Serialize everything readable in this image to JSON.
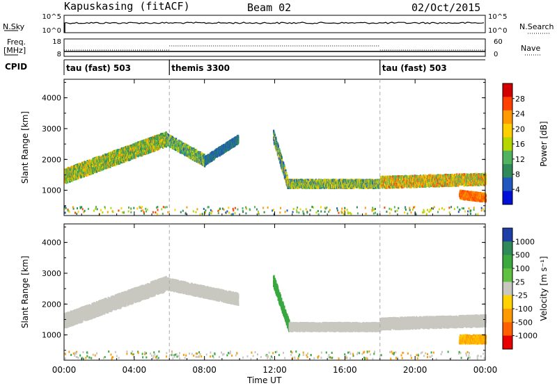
{
  "header": {
    "station": "Kapuskasing (fitACF)",
    "beam": "Beam 02",
    "date": "02/Oct/2015"
  },
  "top_panels": {
    "nsky_label": "N.Sky",
    "nsky_ticks": [
      "10^5",
      "10^0"
    ],
    "nsearch_label": "N.Search",
    "nsearch_ticks": [
      "10^5",
      "10^0"
    ],
    "freq_label_line1": "Freq.",
    "freq_label_line2": "[MHz]",
    "freq_ticks": [
      "18",
      "8"
    ],
    "nave_label": "Nave",
    "nave_ticks": [
      "60",
      "0"
    ],
    "cpid_label": "CPID",
    "cpid_segments": [
      {
        "label": "tau (fast) 503",
        "start_hour": 0,
        "end_hour": 6
      },
      {
        "label": "themis 3300",
        "start_hour": 6,
        "end_hour": 18
      },
      {
        "label": "tau (fast) 503",
        "start_hour": 18,
        "end_hour": 24
      }
    ]
  },
  "x_axis": {
    "label": "Time UT",
    "ticks": [
      "00:00",
      "04:00",
      "08:00",
      "12:00",
      "16:00",
      "20:00",
      "00:00"
    ]
  },
  "chart_data": [
    {
      "type": "heatmap",
      "name": "power",
      "ylabel": "Slant Range [km]",
      "yticks": [
        "4000",
        "3000",
        "2000",
        "1000"
      ],
      "ylim": [
        180,
        4600
      ],
      "xlim_hours": [
        0,
        24
      ],
      "colorbar_label": "Power [dB]",
      "colorbar_ticks": [
        "28",
        "24",
        "20",
        "16",
        "12",
        "8",
        "4"
      ],
      "colorbar_colors": [
        "#d40000",
        "#ff4000",
        "#ff9a00",
        "#ffd000",
        "#b6d600",
        "#4fb35f",
        "#2e8b57",
        "#2058c0",
        "#0010d8"
      ],
      "scatter_bands": [
        {
          "t0": 0.0,
          "r0": 1500,
          "t1": 5.8,
          "r1": 2700,
          "width": 450,
          "values": [
            8,
            14,
            22
          ]
        },
        {
          "t0": 5.8,
          "r0": 2700,
          "t1": 8.0,
          "r1": 2000,
          "width": 350,
          "values": [
            6,
            12,
            18
          ]
        },
        {
          "t0": 8.0,
          "r0": 2000,
          "t1": 9.9,
          "r1": 2700,
          "width": 250,
          "values": [
            4,
            8
          ]
        },
        {
          "t0": 11.9,
          "r0": 2800,
          "t1": 12.7,
          "r1": 1300,
          "width": 350,
          "values": [
            4,
            10,
            20
          ]
        },
        {
          "t0": 12.7,
          "r0": 1250,
          "t1": 18.0,
          "r1": 1250,
          "width": 250,
          "values": [
            6,
            14,
            20
          ]
        },
        {
          "t0": 18.0,
          "r0": 1300,
          "t1": 24.0,
          "r1": 1400,
          "width": 350,
          "values": [
            12,
            20,
            26
          ]
        },
        {
          "t0": 22.5,
          "r0": 900,
          "t1": 24.0,
          "r1": 800,
          "width": 250,
          "values": [
            24,
            28
          ]
        }
      ]
    },
    {
      "type": "heatmap",
      "name": "velocity",
      "ylabel": "Slant Range [km]",
      "yticks": [
        "4000",
        "3000",
        "2000",
        "1000"
      ],
      "ylim": [
        180,
        4600
      ],
      "xlim_hours": [
        0,
        24
      ],
      "colorbar_label": "Velocity [m s⁻¹]",
      "colorbar_ticks": [
        "1000",
        "500",
        "100",
        "25",
        "-25",
        "-100",
        "-500",
        "-1000"
      ],
      "colorbar_colors": [
        "#1f3fa8",
        "#2e8b57",
        "#39a83f",
        "#60c040",
        "#c8c8c0",
        "#ffd200",
        "#ff9a00",
        "#ff6000",
        "#e80000"
      ],
      "scatter_bands": [
        {
          "t0": 0.0,
          "r0": 1500,
          "t1": 5.8,
          "r1": 2700,
          "width": 450,
          "values": [
            0
          ]
        },
        {
          "t0": 5.8,
          "r0": 2700,
          "t1": 9.9,
          "r1": 2200,
          "width": 350,
          "values": [
            0
          ]
        },
        {
          "t0": 11.9,
          "r0": 2800,
          "t1": 12.8,
          "r1": 1300,
          "width": 350,
          "values": [
            150
          ]
        },
        {
          "t0": 12.8,
          "r0": 1300,
          "t1": 18.0,
          "r1": 1300,
          "width": 250,
          "values": [
            0
          ]
        },
        {
          "t0": 18.0,
          "r0": 1400,
          "t1": 24.0,
          "r1": 1500,
          "width": 350,
          "values": [
            0
          ]
        },
        {
          "t0": 22.5,
          "r0": 900,
          "t1": 24.0,
          "r1": 900,
          "width": 250,
          "values": [
            -400,
            -100
          ]
        }
      ]
    }
  ]
}
